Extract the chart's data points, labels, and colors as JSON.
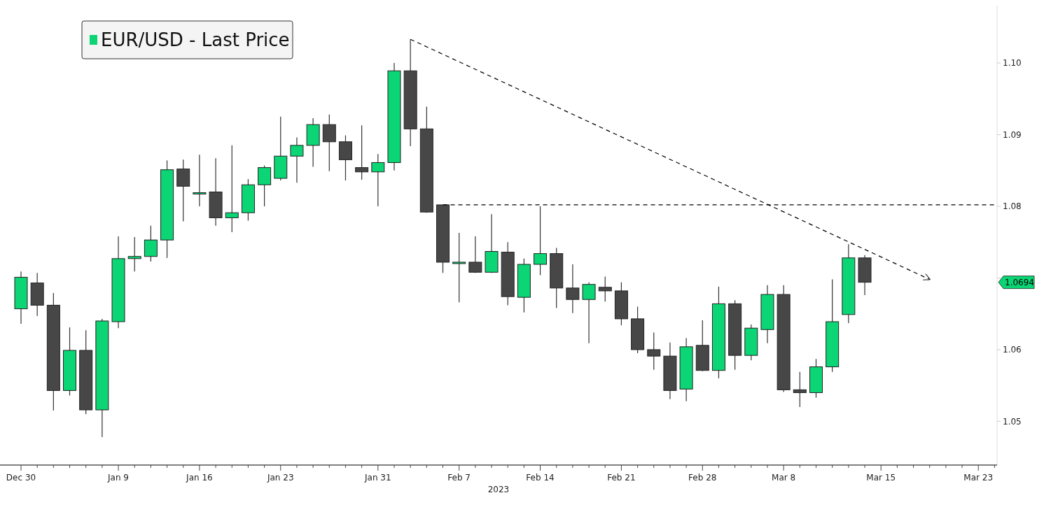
{
  "chart_data": {
    "type": "candlestick",
    "xlabel": "2023",
    "legend": "top left",
    "categories": [
      "Dec 30",
      null,
      null,
      null,
      null,
      null,
      "Jan 9",
      null,
      null,
      null,
      null,
      "Jan 16",
      null,
      null,
      null,
      null,
      "Jan 23",
      null,
      null,
      null,
      null,
      null,
      "Jan 31",
      null,
      null,
      null,
      null,
      "Feb 7",
      null,
      null,
      null,
      null,
      "Feb 14",
      null,
      null,
      null,
      null,
      "Feb 21",
      null,
      null,
      null,
      null,
      "Feb 28",
      null,
      null,
      null,
      null,
      "Mar 8",
      null,
      null,
      null,
      null,
      null,
      "Mar 15",
      null,
      null,
      null,
      null,
      null,
      "Mar 23",
      null
    ],
    "ylim": [
      1.0439,
      1.108
    ],
    "yticks": [
      1.05,
      1.06,
      {
        "value": 1.07,
        "label": null
      },
      1.08,
      1.09,
      {
        "value": 1.1,
        "label": "1.10"
      }
    ],
    "annotations": [
      "1.0694"
    ],
    "series": [
      {
        "name": "EUR/USD - Last Price",
        "color": "#0bd574",
        "ohlc": [
          [
            1.0657,
            1.0709,
            1.0636,
            1.0701
          ],
          [
            1.0693,
            1.0707,
            1.0647,
            1.0662
          ],
          [
            1.0662,
            1.0679,
            1.0515,
            1.0543
          ],
          [
            1.0543,
            1.0631,
            1.0536,
            1.0599
          ],
          [
            1.0599,
            1.0627,
            1.051,
            1.0516
          ],
          [
            1.0516,
            1.0643,
            1.0478,
            1.064
          ],
          [
            1.0639,
            1.0758,
            1.063,
            1.0727
          ],
          [
            1.0727,
            1.0757,
            1.0709,
            1.073
          ],
          [
            1.073,
            1.0773,
            1.0723,
            1.0753
          ],
          [
            1.0753,
            1.0864,
            1.0728,
            1.0851
          ],
          [
            1.0852,
            1.0865,
            1.0779,
            1.0828
          ],
          [
            1.0818,
            1.0872,
            1.08,
            1.0819
          ],
          [
            1.082,
            1.0867,
            1.0773,
            1.0784
          ],
          [
            1.0784,
            1.0885,
            1.0764,
            1.0791
          ],
          [
            1.0791,
            1.0838,
            1.078,
            1.083
          ],
          [
            1.083,
            1.0857,
            1.08,
            1.0854
          ],
          [
            1.0839,
            1.0925,
            1.0836,
            1.087
          ],
          [
            1.087,
            1.0896,
            1.0833,
            1.0885
          ],
          [
            1.0885,
            1.0923,
            1.0855,
            1.0914
          ],
          [
            1.0914,
            1.0928,
            1.0849,
            1.089
          ],
          [
            1.089,
            1.0899,
            1.0836,
            1.0865
          ],
          [
            1.0854,
            1.0913,
            1.0837,
            1.0848
          ],
          [
            1.0848,
            1.0873,
            1.08,
            1.0861
          ],
          [
            1.0861,
            1.1,
            1.085,
            1.0989
          ],
          [
            1.0989,
            1.1033,
            1.0884,
            1.0908
          ],
          [
            1.0908,
            1.0939,
            1.0791,
            1.0792
          ],
          [
            1.0802,
            1.0802,
            1.0707,
            1.0722
          ],
          [
            1.0721,
            1.0763,
            1.0666,
            1.0722
          ],
          [
            1.0722,
            1.0758,
            1.0707,
            1.0708
          ],
          [
            1.0708,
            1.0789,
            1.0707,
            1.0737
          ],
          [
            1.0736,
            1.075,
            1.0662,
            1.0674
          ],
          [
            1.0673,
            1.0727,
            1.0652,
            1.0719
          ],
          [
            1.0719,
            1.08,
            1.0704,
            1.0734
          ],
          [
            1.0734,
            1.0742,
            1.0658,
            1.0686
          ],
          [
            1.0686,
            1.0719,
            1.0651,
            1.067
          ],
          [
            1.067,
            1.0694,
            1.0609,
            1.0691
          ],
          [
            1.0687,
            1.0702,
            1.0667,
            1.0682
          ],
          [
            1.0682,
            1.0694,
            1.0634,
            1.0643
          ],
          [
            1.0643,
            1.066,
            1.0595,
            1.06
          ],
          [
            1.06,
            1.0624,
            1.0572,
            1.0591
          ],
          [
            1.0591,
            1.061,
            1.0531,
            1.0543
          ],
          [
            1.0545,
            1.0616,
            1.0528,
            1.0604
          ],
          [
            1.0606,
            1.0641,
            1.057,
            1.0571
          ],
          [
            1.0571,
            1.0688,
            1.056,
            1.0664
          ],
          [
            1.0664,
            1.0669,
            1.0572,
            1.0592
          ],
          [
            1.0592,
            1.0635,
            1.0585,
            1.063
          ],
          [
            1.0628,
            1.069,
            1.0609,
            1.0677
          ],
          [
            1.0677,
            1.069,
            1.0541,
            1.0544
          ],
          [
            1.0544,
            1.0569,
            1.052,
            1.054
          ],
          [
            1.054,
            1.0587,
            1.0533,
            1.0576
          ],
          [
            1.0576,
            1.0698,
            1.0569,
            1.0639
          ],
          [
            1.0649,
            1.0747,
            1.0637,
            1.0728
          ],
          [
            1.0728,
            1.0732,
            1.0676,
            1.0694
          ],
          null,
          null,
          null,
          null,
          null,
          null,
          null,
          null
        ],
        "colors": [
          "#0bd574",
          "#474747",
          "#474747",
          "#0bd574",
          "#474747",
          "#0bd574",
          "#0bd574",
          "#0bd574",
          "#0bd574",
          "#0bd574",
          "#474747",
          "#0bd574",
          "#474747",
          "#0bd574",
          "#0bd574",
          "#0bd574",
          "#0bd574",
          "#0bd574",
          "#0bd574",
          "#474747",
          "#474747",
          "#474747",
          "#0bd574",
          "#0bd574",
          "#474747",
          "#474747",
          "#474747",
          "#0bd574",
          "#474747",
          "#0bd574",
          "#474747",
          "#0bd574",
          "#0bd574",
          "#474747",
          "#474747",
          "#0bd574",
          "#474747",
          "#474747",
          "#474747",
          "#474747",
          "#474747",
          "#0bd574",
          "#474747",
          "#0bd574",
          "#474747",
          "#0bd574",
          "#0bd574",
          "#474747",
          "#474747",
          "#0bd574",
          "#0bd574",
          "#0bd574",
          "#474747",
          null,
          null,
          null,
          null,
          null,
          null,
          null,
          null
        ]
      },
      {
        "type": "line",
        "color": "#000000",
        "line_style": "dashed",
        "marker": "none",
        "values": [
          null,
          null,
          null,
          null,
          null,
          null,
          null,
          null,
          null,
          null,
          null,
          null,
          null,
          null,
          null,
          null,
          null,
          null,
          null,
          null,
          null,
          null,
          null,
          null,
          1.1033,
          null,
          null,
          null,
          null,
          null,
          null,
          null,
          null,
          null,
          null,
          null,
          null,
          null,
          null,
          null,
          null,
          null,
          null,
          null,
          null,
          null,
          null,
          null,
          null,
          null,
          null,
          null,
          null,
          null,
          null,
          null,
          1.0698,
          null,
          null,
          null,
          null
        ]
      },
      {
        "type": "line",
        "color": "#000000",
        "line_style": "dashed",
        "marker": "none",
        "values": [
          null,
          null,
          null,
          null,
          null,
          null,
          null,
          null,
          null,
          null,
          null,
          null,
          null,
          null,
          null,
          null,
          null,
          null,
          null,
          null,
          null,
          null,
          null,
          null,
          null,
          null,
          1.0802,
          null,
          null,
          null,
          null,
          null,
          null,
          null,
          null,
          null,
          null,
          null,
          null,
          null,
          null,
          null,
          null,
          null,
          null,
          null,
          null,
          null,
          null,
          null,
          null,
          null,
          null,
          null,
          null,
          null,
          null,
          null,
          null,
          null,
          1.0802
        ]
      }
    ]
  }
}
